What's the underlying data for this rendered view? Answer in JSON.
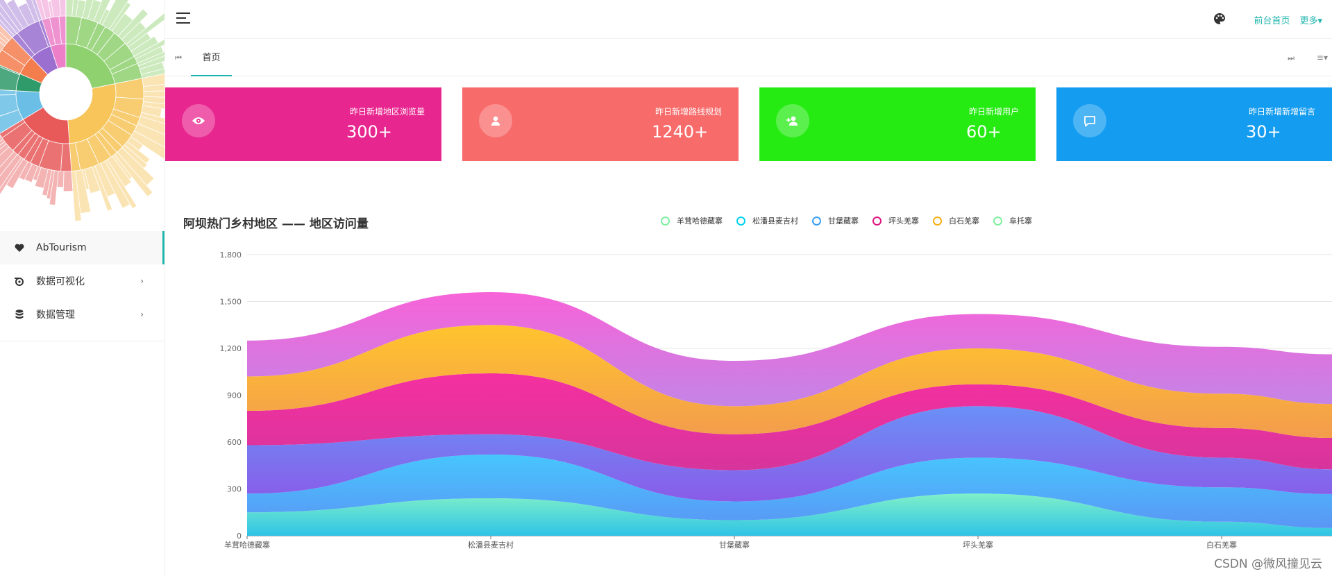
{
  "sidebar": {
    "items": [
      {
        "label": "AbTourism",
        "icon": "heart-icon",
        "active": true
      },
      {
        "label": "数据可视化",
        "icon": "chart-visual-icon",
        "arrow": "›"
      },
      {
        "label": "数据管理",
        "icon": "database-icon",
        "arrow": "›"
      }
    ]
  },
  "header": {
    "front_link": "前台首页",
    "more_link": "更多▾"
  },
  "tabs": {
    "home_label": "首页"
  },
  "cards": [
    {
      "label": "昨日新增地区浏览量",
      "value": "300+",
      "color": "#e8268f",
      "icon": "eye-icon"
    },
    {
      "label": "昨日新增路线规划",
      "value": "1240+",
      "color": "#f86b6b",
      "icon": "user-icon"
    },
    {
      "label": "昨日新增用户",
      "value": "60+",
      "color": "#26eb13",
      "icon": "add-user-icon"
    },
    {
      "label": "昨日新增新增留言",
      "value": "30+",
      "color": "#139cf0",
      "icon": "message-icon"
    }
  ],
  "chart_title": "阿坝热门乡村地区 —— 地区访问量",
  "watermark": "CSDN @微风撞见云",
  "chart_data": {
    "type": "area",
    "stacked": true,
    "smooth": true,
    "categories": [
      "羊茸哈德藏寨",
      "松潘县麦吉村",
      "甘堡藏寨",
      "坪头羌寨",
      "白石羌寨"
    ],
    "ylim": [
      0,
      1800
    ],
    "yticks": [
      "0",
      "300",
      "600",
      "900",
      "1,200",
      "1,500",
      "1,800"
    ],
    "grid": true,
    "legend_position": "top-center",
    "series": [
      {
        "name": "羊茸哈德藏寨",
        "values": [
          150,
          240,
          100,
          270,
          90
        ],
        "colors": [
          "#7ff0c8",
          "#2fc3e6"
        ],
        "legend_color": "#7ff0a0"
      },
      {
        "name": "松潘县麦吉村",
        "values": [
          120,
          280,
          120,
          230,
          220
        ],
        "colors": [
          "#47c6fd",
          "#5a96f5"
        ],
        "legend_color": "#00d2f0"
      },
      {
        "name": "甘堡藏寨",
        "values": [
          310,
          130,
          200,
          330,
          190
        ],
        "colors": [
          "#6a90f7",
          "#8a5be8"
        ],
        "legend_color": "#3aa0f4"
      },
      {
        "name": "坪头羌寨",
        "values": [
          220,
          390,
          230,
          140,
          190
        ],
        "colors": [
          "#f52fa0",
          "#d7359c"
        ],
        "legend_color": "#e0157d"
      },
      {
        "name": "白石羌寨",
        "values": [
          220,
          310,
          180,
          230,
          220
        ],
        "colors": [
          "#ffc42e",
          "#f39c4d"
        ],
        "legend_color": "#f5b014"
      },
      {
        "name": "阜托寨",
        "values": [
          230,
          210,
          290,
          220,
          300
        ],
        "colors": [
          "#f763d8",
          "#c484e6"
        ],
        "legend_color": "#80f09c"
      }
    ]
  }
}
